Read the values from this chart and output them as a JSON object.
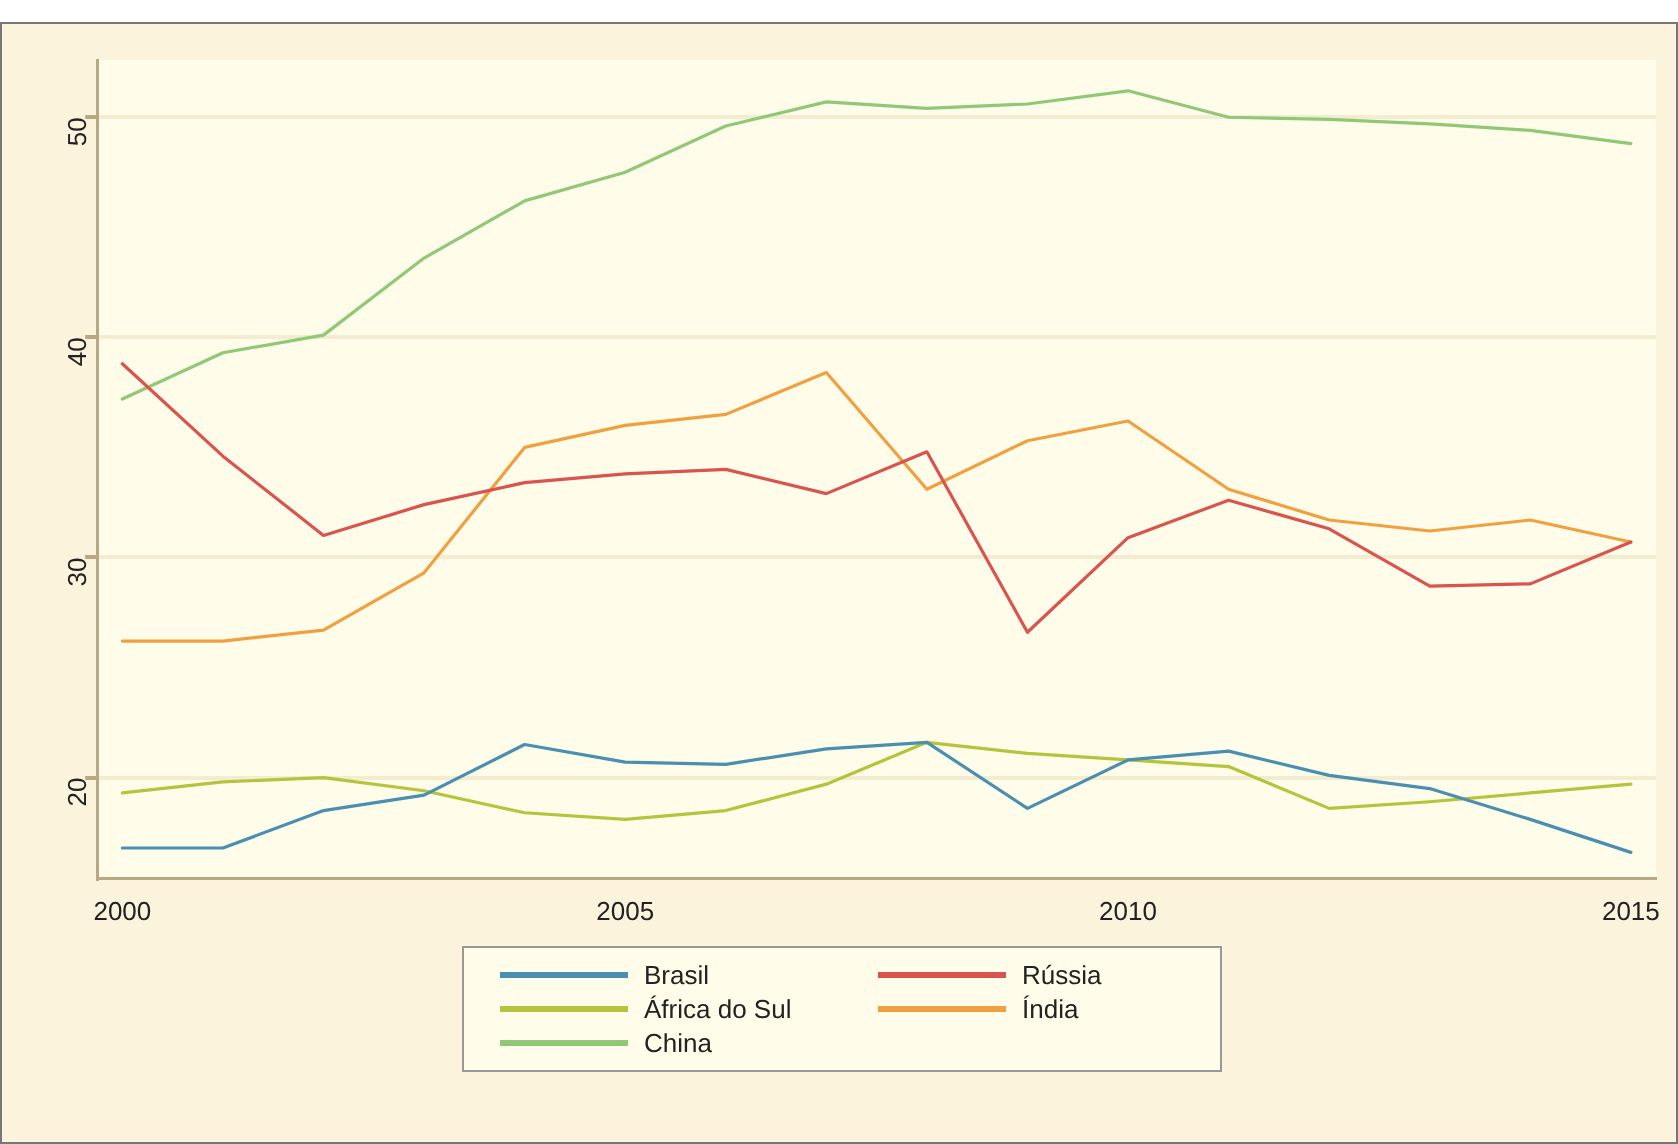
{
  "chart_data": {
    "type": "line",
    "x": [
      2000,
      2001,
      2002,
      2003,
      2004,
      2005,
      2006,
      2007,
      2008,
      2009,
      2010,
      2011,
      2012,
      2013,
      2014,
      2015
    ],
    "xlim": [
      1999.75,
      2015.25
    ],
    "xticks": [
      2000,
      2005,
      2010,
      2015
    ],
    "ylim": [
      15.4,
      52.6
    ],
    "yticks": [
      20,
      30,
      40,
      50
    ],
    "grid": "y",
    "legend": "bottom",
    "marker": "none",
    "line_style": "solid",
    "series": [
      {
        "name": "Brasil",
        "color": "#4a8fb0",
        "values": [
          16.8,
          16.8,
          18.5,
          19.2,
          21.5,
          20.7,
          20.6,
          21.3,
          21.6,
          18.6,
          20.8,
          21.2,
          20.1,
          19.5,
          18.1,
          16.6
        ]
      },
      {
        "name": "Rússia",
        "color": "#d9534f",
        "values": [
          38.8,
          34.6,
          31.0,
          32.4,
          33.4,
          33.8,
          34.0,
          32.9,
          34.8,
          26.6,
          30.9,
          32.6,
          31.3,
          28.7,
          28.8,
          30.7
        ]
      },
      {
        "name": "África do Sul",
        "color": "#b5c43c",
        "values": [
          19.3,
          19.8,
          20.0,
          19.4,
          18.4,
          18.1,
          18.5,
          19.7,
          21.6,
          21.1,
          20.8,
          20.5,
          18.6,
          18.9,
          19.3,
          19.7
        ]
      },
      {
        "name": "Índia",
        "color": "#f0a040",
        "values": [
          26.2,
          26.2,
          26.7,
          29.3,
          35.0,
          36.0,
          36.5,
          38.4,
          33.1,
          35.3,
          36.2,
          33.1,
          31.7,
          31.2,
          31.7,
          30.7
        ]
      },
      {
        "name": "China",
        "color": "#90c878",
        "values": [
          37.2,
          39.3,
          40.1,
          43.6,
          46.2,
          47.5,
          49.6,
          50.7,
          50.4,
          50.6,
          51.2,
          50.0,
          49.9,
          49.7,
          49.4,
          48.8
        ]
      }
    ]
  }
}
